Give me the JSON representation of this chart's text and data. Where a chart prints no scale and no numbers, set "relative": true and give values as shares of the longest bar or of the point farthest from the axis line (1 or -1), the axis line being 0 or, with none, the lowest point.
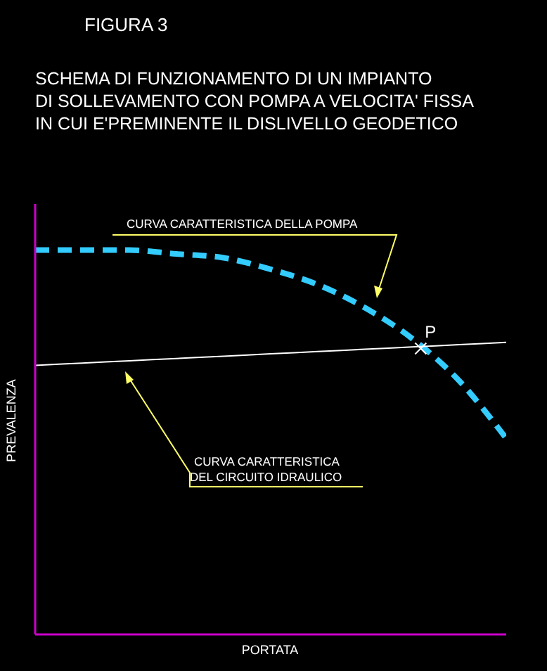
{
  "chart_data": {
    "type": "line",
    "title": "FIGURA 3",
    "subtitle": "SCHEMA DI FUNZIONAMENTO DI UN IMPIANTO\nDI SOLLEVAMENTO CON POMPA A VELOCITA' FISSA\nIN CUI E'PREMINENTE IL DISLIVELLO GEODETICO",
    "xlabel": "PORTATA",
    "ylabel": "PREVALENZA",
    "relative": true,
    "marker": "none",
    "categories": [
      null,
      null,
      null,
      null,
      null,
      null,
      null,
      null,
      null,
      null,
      null
    ],
    "series": [
      {
        "color": "#33ccff",
        "line_style": "dashed",
        "values": [
          1.0,
          1.0,
          1.0,
          0.99,
          0.98,
          0.95,
          0.91,
          0.85,
          0.77,
          0.66,
          0.51
        ]
      },
      {
        "color": "#ffffff",
        "line_style": "solid",
        "values": [
          0.7,
          0.706,
          0.712,
          0.718,
          0.724,
          0.73,
          0.736,
          0.742,
          0.748,
          0.754,
          0.76
        ]
      }
    ],
    "annotations": [
      "CURVA CARATTERISTICA DELLA POMPA",
      "CURVA CARATTERISTICA\nDEL CIRCUITO IDRAULICO",
      {
        "text": "P",
        "y": 0.745
      }
    ]
  }
}
